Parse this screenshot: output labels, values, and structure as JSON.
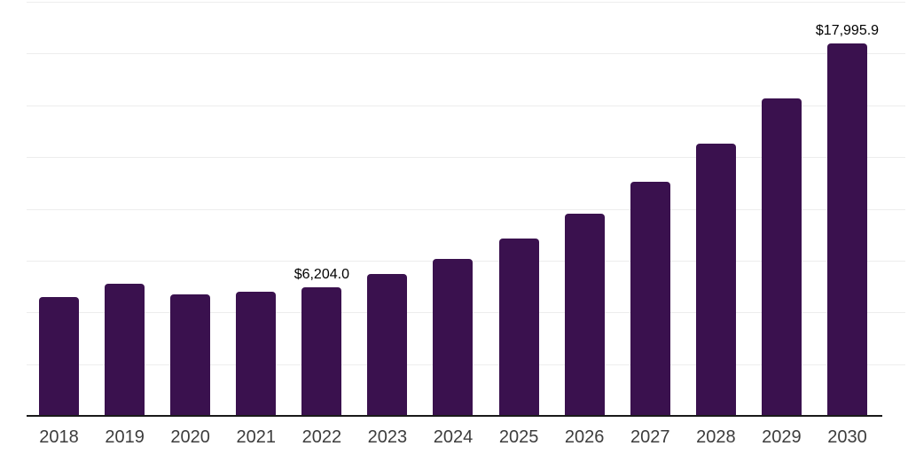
{
  "chart_data": {
    "type": "bar",
    "title": "",
    "xlabel": "",
    "ylabel": "",
    "categories": [
      "2018",
      "2019",
      "2020",
      "2021",
      "2022",
      "2023",
      "2024",
      "2025",
      "2026",
      "2027",
      "2028",
      "2029",
      "2030"
    ],
    "values": [
      5730,
      6370,
      5860,
      5990,
      6204.0,
      6840,
      7600,
      8550,
      9780,
      11310,
      13140,
      15350,
      17995.9
    ],
    "annotations": [
      {
        "category": "2022",
        "text": "$6,204.0"
      },
      {
        "category": "2030",
        "text": "$17,995.9"
      }
    ],
    "ylim": [
      0,
      20000
    ],
    "gridline_step": 2500,
    "grid": true,
    "legend": false,
    "y_axis_labels_visible": false
  },
  "colors": {
    "bar": "#3a114e",
    "gridline": "#ededed",
    "axis": "#1a1a1a",
    "x_tick_label": "#3d3d3d",
    "value_label": "#000000",
    "background": "#ffffff"
  }
}
